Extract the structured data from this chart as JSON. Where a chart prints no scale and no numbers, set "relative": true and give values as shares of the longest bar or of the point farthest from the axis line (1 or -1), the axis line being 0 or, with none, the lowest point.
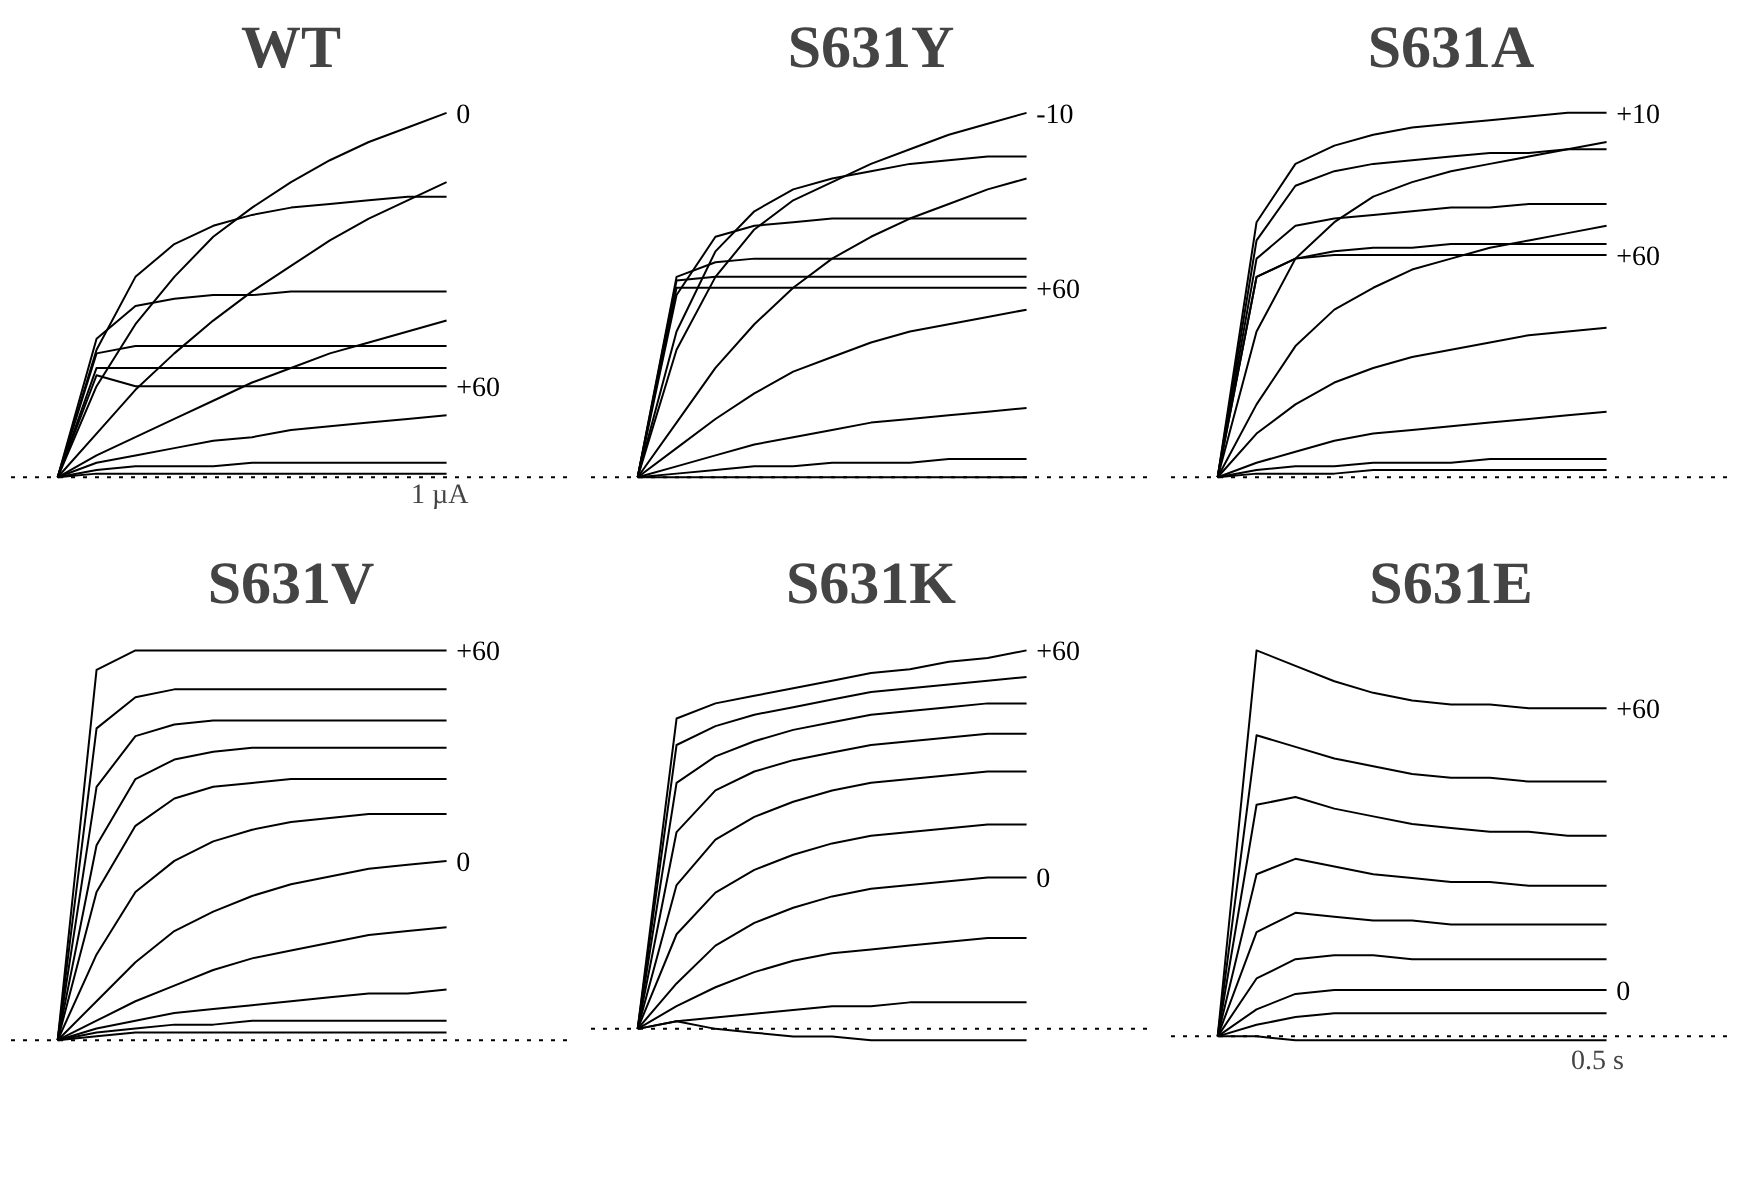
{
  "chart_data": [
    {
      "type": "line",
      "title": "WT",
      "relative": true,
      "ref_lines": [
        {
          "axis": "y",
          "value": 0,
          "line_style": "dotted"
        }
      ],
      "categories": [
        null,
        null,
        null,
        null,
        null,
        null,
        null,
        null,
        null,
        null,
        null
      ],
      "annotations": [
        "1 µA"
      ],
      "series": [
        {
          "name": "0",
          "color": "#000000",
          "values": [
            0,
            0.25,
            0.42,
            0.55,
            0.66,
            0.74,
            0.81,
            0.87,
            0.92,
            0.96,
            1.0
          ]
        },
        {
          "color": "#000000",
          "values": [
            0,
            0.12,
            0.24,
            0.34,
            0.43,
            0.51,
            0.58,
            0.65,
            0.71,
            0.76,
            0.81
          ]
        },
        {
          "color": "#000000",
          "values": [
            0,
            0.35,
            0.55,
            0.64,
            0.69,
            0.72,
            0.74,
            0.75,
            0.76,
            0.77,
            0.77
          ]
        },
        {
          "color": "#000000",
          "values": [
            0,
            0.38,
            0.47,
            0.49,
            0.5,
            0.5,
            0.51,
            0.51,
            0.51,
            0.51,
            0.51
          ]
        },
        {
          "color": "#000000",
          "values": [
            0,
            0.06,
            0.11,
            0.16,
            0.21,
            0.26,
            0.3,
            0.34,
            0.37,
            0.4,
            0.43
          ]
        },
        {
          "color": "#000000",
          "values": [
            0,
            0.34,
            0.36,
            0.36,
            0.36,
            0.36,
            0.36,
            0.36,
            0.36,
            0.36,
            0.36
          ]
        },
        {
          "color": "#000000",
          "values": [
            0,
            0.3,
            0.3,
            0.3,
            0.3,
            0.3,
            0.3,
            0.3,
            0.3,
            0.3,
            0.3
          ]
        },
        {
          "name": "+60",
          "color": "#000000",
          "values": [
            0,
            0.28,
            0.25,
            0.25,
            0.25,
            0.25,
            0.25,
            0.25,
            0.25,
            0.25,
            0.25
          ]
        },
        {
          "color": "#000000",
          "values": [
            0,
            0.04,
            0.06,
            0.08,
            0.1,
            0.11,
            0.13,
            0.14,
            0.15,
            0.16,
            0.17
          ]
        },
        {
          "color": "#000000",
          "values": [
            0,
            0.02,
            0.03,
            0.03,
            0.03,
            0.04,
            0.04,
            0.04,
            0.04,
            0.04,
            0.04
          ]
        },
        {
          "color": "#000000",
          "values": [
            0,
            0.01,
            0.01,
            0.01,
            0.01,
            0.01,
            0.01,
            0.01,
            0.01,
            0.01,
            0.01
          ]
        }
      ]
    },
    {
      "type": "line",
      "title": "S631Y",
      "relative": true,
      "ref_lines": [
        {
          "axis": "y",
          "value": 0,
          "line_style": "dotted"
        }
      ],
      "categories": [
        null,
        null,
        null,
        null,
        null,
        null,
        null,
        null,
        null,
        null,
        null
      ],
      "series": [
        {
          "name": "-10",
          "color": "#000000",
          "values": [
            0,
            0.35,
            0.55,
            0.68,
            0.76,
            0.81,
            0.86,
            0.9,
            0.94,
            0.97,
            1.0
          ]
        },
        {
          "color": "#000000",
          "values": [
            0,
            0.4,
            0.62,
            0.73,
            0.79,
            0.82,
            0.84,
            0.86,
            0.87,
            0.88,
            0.88
          ]
        },
        {
          "color": "#000000",
          "values": [
            0,
            0.15,
            0.3,
            0.42,
            0.52,
            0.6,
            0.66,
            0.71,
            0.75,
            0.79,
            0.82
          ]
        },
        {
          "color": "#000000",
          "values": [
            0,
            0.5,
            0.66,
            0.69,
            0.7,
            0.71,
            0.71,
            0.71,
            0.71,
            0.71,
            0.71
          ]
        },
        {
          "color": "#000000",
          "values": [
            0,
            0.55,
            0.59,
            0.6,
            0.6,
            0.6,
            0.6,
            0.6,
            0.6,
            0.6,
            0.6
          ]
        },
        {
          "color": "#000000",
          "values": [
            0,
            0.54,
            0.55,
            0.55,
            0.55,
            0.55,
            0.55,
            0.55,
            0.55,
            0.55,
            0.55
          ]
        },
        {
          "name": "+60",
          "color": "#000000",
          "values": [
            0,
            0.52,
            0.52,
            0.52,
            0.52,
            0.52,
            0.52,
            0.52,
            0.52,
            0.52,
            0.52
          ]
        },
        {
          "color": "#000000",
          "values": [
            0,
            0.08,
            0.16,
            0.23,
            0.29,
            0.33,
            0.37,
            0.4,
            0.42,
            0.44,
            0.46
          ]
        },
        {
          "color": "#000000",
          "values": [
            0,
            0.03,
            0.06,
            0.09,
            0.11,
            0.13,
            0.15,
            0.16,
            0.17,
            0.18,
            0.19
          ]
        },
        {
          "color": "#000000",
          "values": [
            0,
            0.01,
            0.02,
            0.03,
            0.03,
            0.04,
            0.04,
            0.04,
            0.05,
            0.05,
            0.05
          ]
        },
        {
          "color": "#000000",
          "values": [
            0,
            0,
            0,
            0,
            0,
            0,
            0,
            0,
            0,
            0,
            0
          ]
        }
      ]
    },
    {
      "type": "line",
      "title": "S631A",
      "relative": true,
      "ref_lines": [
        {
          "axis": "y",
          "value": 0,
          "line_style": "dotted"
        }
      ],
      "categories": [
        null,
        null,
        null,
        null,
        null,
        null,
        null,
        null,
        null,
        null,
        null
      ],
      "series": [
        {
          "name": "+10",
          "color": "#000000",
          "values": [
            0,
            0.7,
            0.86,
            0.91,
            0.94,
            0.96,
            0.97,
            0.98,
            0.99,
            1.0,
            1.0
          ]
        },
        {
          "color": "#000000",
          "values": [
            0,
            0.65,
            0.8,
            0.84,
            0.86,
            0.87,
            0.88,
            0.89,
            0.89,
            0.9,
            0.9
          ]
        },
        {
          "color": "#000000",
          "values": [
            0,
            0.4,
            0.6,
            0.7,
            0.77,
            0.81,
            0.84,
            0.86,
            0.88,
            0.9,
            0.92
          ]
        },
        {
          "color": "#000000",
          "values": [
            0,
            0.6,
            0.69,
            0.71,
            0.72,
            0.73,
            0.74,
            0.74,
            0.75,
            0.75,
            0.75
          ]
        },
        {
          "color": "#000000",
          "values": [
            0,
            0.2,
            0.36,
            0.46,
            0.52,
            0.57,
            0.6,
            0.63,
            0.65,
            0.67,
            0.69
          ]
        },
        {
          "color": "#000000",
          "values": [
            0,
            0.55,
            0.6,
            0.62,
            0.63,
            0.63,
            0.64,
            0.64,
            0.64,
            0.64,
            0.64
          ]
        },
        {
          "name": "+60",
          "color": "#000000",
          "values": [
            0,
            0.55,
            0.6,
            0.61,
            0.61,
            0.61,
            0.61,
            0.61,
            0.61,
            0.61,
            0.61
          ]
        },
        {
          "color": "#000000",
          "values": [
            0,
            0.12,
            0.2,
            0.26,
            0.3,
            0.33,
            0.35,
            0.37,
            0.39,
            0.4,
            0.41
          ]
        },
        {
          "color": "#000000",
          "values": [
            0,
            0.04,
            0.07,
            0.1,
            0.12,
            0.13,
            0.14,
            0.15,
            0.16,
            0.17,
            0.18
          ]
        },
        {
          "color": "#000000",
          "values": [
            0,
            0.02,
            0.03,
            0.03,
            0.04,
            0.04,
            0.04,
            0.05,
            0.05,
            0.05,
            0.05
          ]
        },
        {
          "color": "#000000",
          "values": [
            0,
            0.01,
            0.01,
            0.01,
            0.02,
            0.02,
            0.02,
            0.02,
            0.02,
            0.02,
            0.02
          ]
        }
      ]
    },
    {
      "type": "line",
      "title": "S631V",
      "relative": true,
      "ref_lines": [
        {
          "axis": "y",
          "value": 0,
          "line_style": "dotted"
        }
      ],
      "categories": [
        null,
        null,
        null,
        null,
        null,
        null,
        null,
        null,
        null,
        null,
        null
      ],
      "series": [
        {
          "name": "+60",
          "color": "#000000",
          "values": [
            0,
            0.95,
            1.0,
            1.0,
            1.0,
            1.0,
            1.0,
            1.0,
            1.0,
            1.0,
            1.0
          ]
        },
        {
          "color": "#000000",
          "values": [
            0,
            0.8,
            0.88,
            0.9,
            0.9,
            0.9,
            0.9,
            0.9,
            0.9,
            0.9,
            0.9
          ]
        },
        {
          "color": "#000000",
          "values": [
            0,
            0.65,
            0.78,
            0.81,
            0.82,
            0.82,
            0.82,
            0.82,
            0.82,
            0.82,
            0.82
          ]
        },
        {
          "color": "#000000",
          "values": [
            0,
            0.5,
            0.67,
            0.72,
            0.74,
            0.75,
            0.75,
            0.75,
            0.75,
            0.75,
            0.75
          ]
        },
        {
          "color": "#000000",
          "values": [
            0,
            0.38,
            0.55,
            0.62,
            0.65,
            0.66,
            0.67,
            0.67,
            0.67,
            0.67,
            0.67
          ]
        },
        {
          "color": "#000000",
          "values": [
            0,
            0.22,
            0.38,
            0.46,
            0.51,
            0.54,
            0.56,
            0.57,
            0.58,
            0.58,
            0.58
          ]
        },
        {
          "name": "0",
          "color": "#000000",
          "values": [
            0,
            0.1,
            0.2,
            0.28,
            0.33,
            0.37,
            0.4,
            0.42,
            0.44,
            0.45,
            0.46
          ]
        },
        {
          "color": "#000000",
          "values": [
            0,
            0.05,
            0.1,
            0.14,
            0.18,
            0.21,
            0.23,
            0.25,
            0.27,
            0.28,
            0.29
          ]
        },
        {
          "color": "#000000",
          "values": [
            0,
            0.03,
            0.05,
            0.07,
            0.08,
            0.09,
            0.1,
            0.11,
            0.12,
            0.12,
            0.13
          ]
        },
        {
          "color": "#000000",
          "values": [
            0,
            0.02,
            0.03,
            0.04,
            0.04,
            0.05,
            0.05,
            0.05,
            0.05,
            0.05,
            0.05
          ]
        },
        {
          "color": "#000000",
          "values": [
            0,
            0.01,
            0.02,
            0.02,
            0.02,
            0.02,
            0.02,
            0.02,
            0.02,
            0.02,
            0.02
          ]
        }
      ]
    },
    {
      "type": "line",
      "title": "S631K",
      "relative": true,
      "ref_lines": [
        {
          "axis": "y",
          "value": 0,
          "line_style": "dotted"
        }
      ],
      "categories": [
        null,
        null,
        null,
        null,
        null,
        null,
        null,
        null,
        null,
        null,
        null
      ],
      "series": [
        {
          "name": "+60",
          "color": "#000000",
          "values": [
            0,
            0.82,
            0.86,
            0.88,
            0.9,
            0.92,
            0.94,
            0.95,
            0.97,
            0.98,
            1.0
          ]
        },
        {
          "color": "#000000",
          "values": [
            0,
            0.75,
            0.8,
            0.83,
            0.85,
            0.87,
            0.89,
            0.9,
            0.91,
            0.92,
            0.93
          ]
        },
        {
          "color": "#000000",
          "values": [
            0,
            0.65,
            0.72,
            0.76,
            0.79,
            0.81,
            0.83,
            0.84,
            0.85,
            0.86,
            0.86
          ]
        },
        {
          "color": "#000000",
          "values": [
            0,
            0.52,
            0.63,
            0.68,
            0.71,
            0.73,
            0.75,
            0.76,
            0.77,
            0.78,
            0.78
          ]
        },
        {
          "color": "#000000",
          "values": [
            0,
            0.38,
            0.5,
            0.56,
            0.6,
            0.63,
            0.65,
            0.66,
            0.67,
            0.68,
            0.68
          ]
        },
        {
          "color": "#000000",
          "values": [
            0,
            0.25,
            0.36,
            0.42,
            0.46,
            0.49,
            0.51,
            0.52,
            0.53,
            0.54,
            0.54
          ]
        },
        {
          "name": "0",
          "color": "#000000",
          "values": [
            0,
            0.12,
            0.22,
            0.28,
            0.32,
            0.35,
            0.37,
            0.38,
            0.39,
            0.4,
            0.4
          ]
        },
        {
          "color": "#000000",
          "values": [
            0,
            0.06,
            0.11,
            0.15,
            0.18,
            0.2,
            0.21,
            0.22,
            0.23,
            0.24,
            0.24
          ]
        },
        {
          "color": "#000000",
          "values": [
            0,
            0.02,
            0.03,
            0.04,
            0.05,
            0.06,
            0.06,
            0.07,
            0.07,
            0.07,
            0.07
          ]
        },
        {
          "color": "#000000",
          "values": [
            0,
            0.02,
            0,
            -0.01,
            -0.02,
            -0.02,
            -0.03,
            -0.03,
            -0.03,
            -0.03,
            -0.03
          ]
        }
      ]
    },
    {
      "type": "line",
      "title": "S631E",
      "relative": true,
      "ref_lines": [
        {
          "axis": "y",
          "value": 0,
          "line_style": "dotted"
        }
      ],
      "categories": [
        null,
        null,
        null,
        null,
        null,
        null,
        null,
        null,
        null,
        null,
        null
      ],
      "annotations": [
        "0.5 s"
      ],
      "series": [
        {
          "name": "+60",
          "color": "#000000",
          "values": [
            0,
            1.0,
            0.96,
            0.92,
            0.89,
            0.87,
            0.86,
            0.86,
            0.85,
            0.85,
            0.85
          ]
        },
        {
          "color": "#000000",
          "values": [
            0,
            0.78,
            0.75,
            0.72,
            0.7,
            0.68,
            0.67,
            0.67,
            0.66,
            0.66,
            0.66
          ]
        },
        {
          "color": "#000000",
          "values": [
            0,
            0.6,
            0.62,
            0.59,
            0.57,
            0.55,
            0.54,
            0.53,
            0.53,
            0.52,
            0.52
          ]
        },
        {
          "color": "#000000",
          "values": [
            0,
            0.42,
            0.46,
            0.44,
            0.42,
            0.41,
            0.4,
            0.4,
            0.39,
            0.39,
            0.39
          ]
        },
        {
          "color": "#000000",
          "values": [
            0,
            0.27,
            0.32,
            0.31,
            0.3,
            0.3,
            0.29,
            0.29,
            0.29,
            0.29,
            0.29
          ]
        },
        {
          "color": "#000000",
          "values": [
            0,
            0.15,
            0.2,
            0.21,
            0.21,
            0.2,
            0.2,
            0.2,
            0.2,
            0.2,
            0.2
          ]
        },
        {
          "name": "0",
          "color": "#000000",
          "values": [
            0,
            0.07,
            0.11,
            0.12,
            0.12,
            0.12,
            0.12,
            0.12,
            0.12,
            0.12,
            0.12
          ]
        },
        {
          "color": "#000000",
          "values": [
            0,
            0.03,
            0.05,
            0.06,
            0.06,
            0.06,
            0.06,
            0.06,
            0.06,
            0.06,
            0.06
          ]
        },
        {
          "color": "#000000",
          "values": [
            0,
            0,
            -0.01,
            -0.01,
            -0.01,
            -0.01,
            -0.01,
            -0.01,
            -0.01,
            -0.01,
            -0.01
          ]
        }
      ]
    }
  ]
}
